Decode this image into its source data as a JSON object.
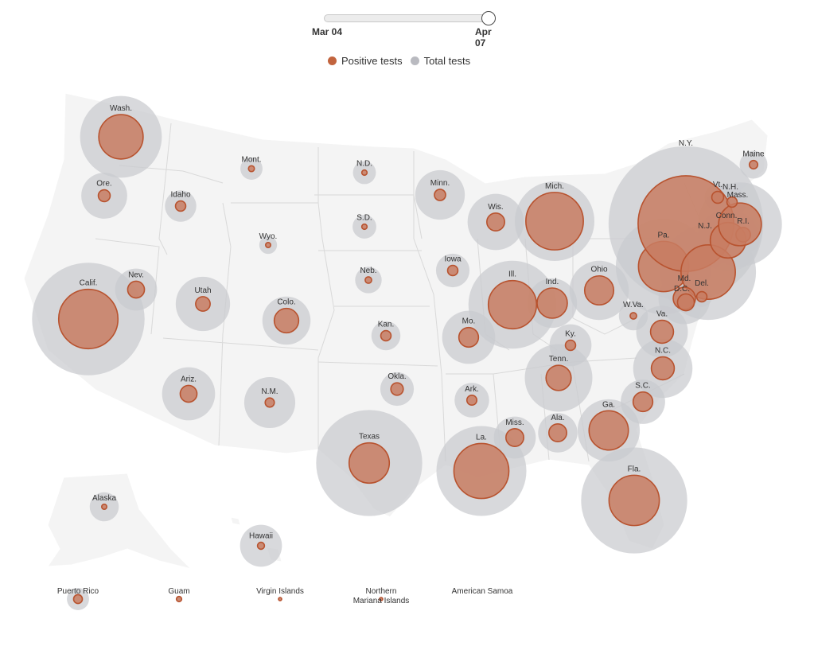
{
  "slider": {
    "start_label": "Mar 04",
    "end_label": "Apr 07",
    "position": 1.0
  },
  "legend": {
    "positive": {
      "label": "Positive tests",
      "color": "#c2643e"
    },
    "total": {
      "label": "Total tests",
      "color": "#b9bac0"
    }
  },
  "states": [
    {
      "label": "Wash.",
      "total": 950,
      "positive": 280
    },
    {
      "label": "Ore.",
      "total": 300,
      "positive": 20
    },
    {
      "label": "Calif.",
      "total": 1800,
      "positive": 500
    },
    {
      "label": "Nev.",
      "total": 250,
      "positive": 40
    },
    {
      "label": "Idaho",
      "total": 140,
      "positive": 15
    },
    {
      "label": "Mont.",
      "total": 70,
      "positive": 5
    },
    {
      "label": "Wyo.",
      "total": 45,
      "positive": 3
    },
    {
      "label": "Utah",
      "total": 420,
      "positive": 30
    },
    {
      "label": "Colo.",
      "total": 330,
      "positive": 85
    },
    {
      "label": "Ariz.",
      "total": 400,
      "positive": 40
    },
    {
      "label": "N.M.",
      "total": 370,
      "positive": 12
    },
    {
      "label": "N.D.",
      "total": 75,
      "positive": 4
    },
    {
      "label": "S.D.",
      "total": 80,
      "positive": 4
    },
    {
      "label": "Neb.",
      "total": 100,
      "positive": 6
    },
    {
      "label": "Kan.",
      "total": 120,
      "positive": 15
    },
    {
      "label": "Okla.",
      "total": 160,
      "positive": 22
    },
    {
      "label": "Texas",
      "total": 1600,
      "positive": 230
    },
    {
      "label": "Minn.",
      "total": 350,
      "positive": 18
    },
    {
      "label": "Iowa",
      "total": 160,
      "positive": 15
    },
    {
      "label": "Mo.",
      "total": 400,
      "positive": 55
    },
    {
      "label": "Ark.",
      "total": 170,
      "positive": 14
    },
    {
      "label": "La.",
      "total": 1150,
      "positive": 430
    },
    {
      "label": "Wis.",
      "total": 450,
      "positive": 45
    },
    {
      "label": "Ill.",
      "total": 1100,
      "positive": 330
    },
    {
      "label": "Mich.",
      "total": 900,
      "positive": 470
    },
    {
      "label": "Ind.",
      "total": 350,
      "positive": 130
    },
    {
      "label": "Ohio",
      "total": 500,
      "positive": 120
    },
    {
      "label": "Ky.",
      "total": 250,
      "positive": 15
    },
    {
      "label": "Tenn.",
      "total": 650,
      "positive": 90
    },
    {
      "label": "Miss.",
      "total": 250,
      "positive": 45
    },
    {
      "label": "Ala.",
      "total": 220,
      "positive": 45
    },
    {
      "label": "Ga.",
      "total": 550,
      "positive": 220
    },
    {
      "label": "Fla.",
      "total": 1600,
      "positive": 360
    },
    {
      "label": "S.C.",
      "total": 280,
      "positive": 55
    },
    {
      "label": "N.C.",
      "total": 500,
      "positive": 75
    },
    {
      "label": "Va.",
      "total": 380,
      "positive": 75
    },
    {
      "label": "W.Va.",
      "total": 120,
      "positive": 6
    },
    {
      "label": "Pa.",
      "total": 1300,
      "positive": 360
    },
    {
      "label": "N.Y.",
      "total": 3400,
      "positive": 1300
    },
    {
      "label": "N.J.",
      "total": 1300,
      "positive": 420
    },
    {
      "label": "Del.",
      "total": 60,
      "positive": 15
    },
    {
      "label": "Md.",
      "total": 380,
      "positive": 70
    },
    {
      "label": "D.C.",
      "total": 60,
      "positive": 40
    },
    {
      "label": "Conn.",
      "total": 550,
      "positive": 180
    },
    {
      "label": "R.I.",
      "total": 200,
      "positive": 30
    },
    {
      "label": "Mass.",
      "total": 1000,
      "positive": 260
    },
    {
      "label": "Vt.",
      "total": 100,
      "positive": 20
    },
    {
      "label": "N.H.",
      "total": 120,
      "positive": 15
    },
    {
      "label": "Maine",
      "total": 110,
      "positive": 10
    },
    {
      "label": "Alaska",
      "total": 120,
      "positive": 3
    },
    {
      "label": "Hawaii",
      "total": 250,
      "positive": 7
    }
  ],
  "territories": [
    {
      "label": "Puerto Rico",
      "total": 70,
      "positive": 11
    },
    {
      "label": "Guam",
      "total": 3,
      "positive": 4
    },
    {
      "label": "Virgin Islands",
      "total": 1,
      "positive": 1
    },
    {
      "label": "Northern\nMariana Islands",
      "total": 0.3,
      "positive": 0.2
    },
    {
      "label": "American Samoa",
      "total": 0,
      "positive": 0
    }
  ]
}
